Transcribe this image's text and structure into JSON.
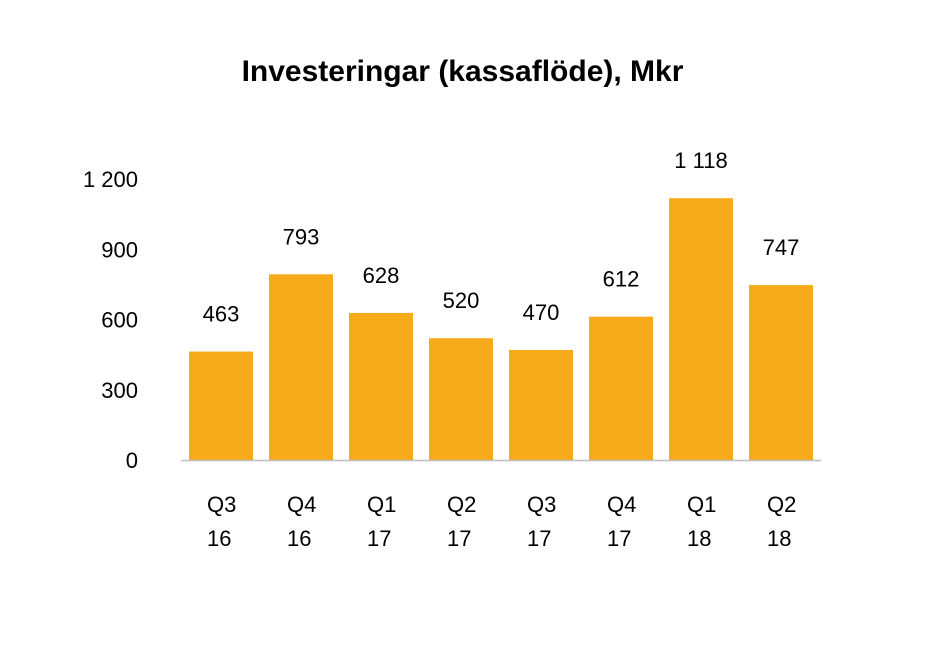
{
  "chart_data": {
    "type": "bar",
    "title": "Investeringar (kassaflöde), Mkr",
    "categories": [
      [
        "Q3",
        "16"
      ],
      [
        "Q4",
        "16"
      ],
      [
        "Q1",
        "17"
      ],
      [
        "Q2",
        "17"
      ],
      [
        "Q3",
        "17"
      ],
      [
        "Q4",
        "17"
      ],
      [
        "Q1",
        "18"
      ],
      [
        "Q2",
        "18"
      ]
    ],
    "values": [
      463,
      793,
      628,
      520,
      470,
      612,
      1118,
      747
    ],
    "data_labels": [
      "463",
      "793",
      "628",
      "520",
      "470",
      "612",
      "1 118",
      "747"
    ],
    "y_ticks": [
      0,
      300,
      600,
      900,
      1200
    ],
    "y_tick_labels": [
      "0",
      "300",
      "600",
      "900",
      "1 200"
    ],
    "ylim": [
      0,
      1200
    ],
    "xlabel": "",
    "ylabel": "",
    "grid": false,
    "legend": "none",
    "bar_color": "#F8AB1A",
    "axis_color": "#BFBFBF"
  }
}
